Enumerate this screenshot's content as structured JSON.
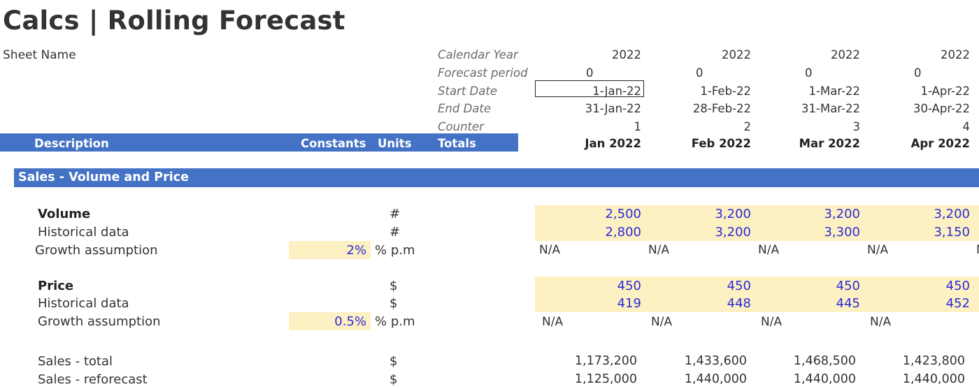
{
  "title": "Calcs | Rolling Forecast",
  "sheet_name_label": "Sheet Name",
  "meta_labels": {
    "calendar_year": "Calendar Year",
    "forecast_period": "Forecast period",
    "start_date": "Start Date",
    "end_date": "End Date",
    "counter": "Counter"
  },
  "header": {
    "description": "Description",
    "constants": "Constants",
    "units": "Units",
    "totals": "Totals"
  },
  "months": [
    {
      "calendar_year": "2022",
      "forecast_period": "0",
      "start_date": "1-Jan-22",
      "end_date": "31-Jan-22",
      "counter": "1",
      "label": "Jan 2022"
    },
    {
      "calendar_year": "2022",
      "forecast_period": "0",
      "start_date": "1-Feb-22",
      "end_date": "28-Feb-22",
      "counter": "2",
      "label": "Feb 2022"
    },
    {
      "calendar_year": "2022",
      "forecast_period": "0",
      "start_date": "1-Mar-22",
      "end_date": "31-Mar-22",
      "counter": "3",
      "label": "Mar 2022"
    },
    {
      "calendar_year": "2022",
      "forecast_period": "0",
      "start_date": "1-Apr-22",
      "end_date": "30-Apr-22",
      "counter": "4",
      "label": "Apr 2022"
    }
  ],
  "section": {
    "title": "Sales - Volume and Price"
  },
  "volume": {
    "label": "Volume",
    "unit": "#",
    "values": [
      "2,500",
      "3,200",
      "3,200",
      "3,200"
    ],
    "historical_label": "Historical data",
    "historical_unit": "#",
    "historical_values": [
      "2,800",
      "3,200",
      "3,300",
      "3,150"
    ],
    "growth_label": "Growth assumption",
    "growth_value": "2%",
    "growth_unit": "% p.m",
    "growth_months": [
      "N/A",
      "N/A",
      "N/A",
      "N/A"
    ],
    "growth_cutoff": "N"
  },
  "price": {
    "label": "Price",
    "unit": "$",
    "values": [
      "450",
      "450",
      "450",
      "450"
    ],
    "historical_label": "Historical data",
    "historical_unit": "$",
    "historical_values": [
      "419",
      "448",
      "445",
      "452"
    ],
    "growth_label": "Growth assumption",
    "growth_value": "0.5%",
    "growth_unit": "% p.m",
    "growth_months": [
      "N/A",
      "N/A",
      "N/A",
      "N/A"
    ]
  },
  "sales_total": {
    "label": "Sales - total",
    "unit": "$",
    "values": [
      "1,173,200",
      "1,433,600",
      "1,468,500",
      "1,423,800"
    ]
  },
  "sales_reforecast": {
    "label": "Sales - reforecast",
    "unit": "$",
    "values": [
      "1,125,000",
      "1,440,000",
      "1,440,000",
      "1,440,000"
    ]
  }
}
